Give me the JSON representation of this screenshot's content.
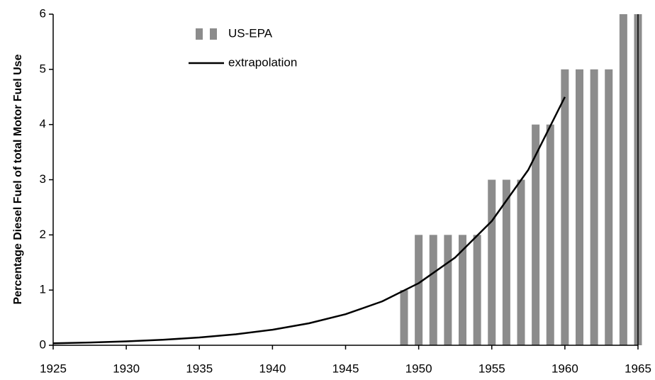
{
  "chart_data": {
    "type": "bar",
    "y_label": "Percentage Diesel Fuel of total Motor Fuel Use",
    "xlim": [
      1925,
      1965
    ],
    "xticks": [
      1925,
      1930,
      1935,
      1940,
      1945,
      1950,
      1955,
      1960,
      1965
    ],
    "ylim": [
      0,
      6
    ],
    "yticks": [
      0,
      1,
      2,
      3,
      4,
      5,
      6
    ],
    "legend": "upper left",
    "series": [
      {
        "name": "US-EPA",
        "type": "bar",
        "color": "#8c8c8c",
        "x": [
          1949,
          1950,
          1951,
          1952,
          1953,
          1954,
          1955,
          1956,
          1957,
          1958,
          1959,
          1960,
          1961,
          1962,
          1963,
          1964,
          1965
        ],
        "values": [
          1,
          2,
          2,
          2,
          2,
          2,
          3,
          3,
          3,
          4,
          4,
          5,
          5,
          5,
          5,
          6,
          6
        ]
      },
      {
        "name": "extrapolation",
        "type": "line",
        "color": "#000000",
        "x": [
          1925,
          1927.5,
          1930,
          1932.5,
          1935,
          1937.5,
          1940,
          1942.5,
          1945,
          1947.5,
          1950,
          1952.5,
          1955,
          1957.5,
          1960
        ],
        "values": [
          0.035,
          0.05,
          0.07,
          0.099,
          0.141,
          0.199,
          0.281,
          0.398,
          0.5625,
          0.795,
          1.125,
          1.591,
          2.25,
          3.18,
          4.5
        ]
      }
    ]
  }
}
